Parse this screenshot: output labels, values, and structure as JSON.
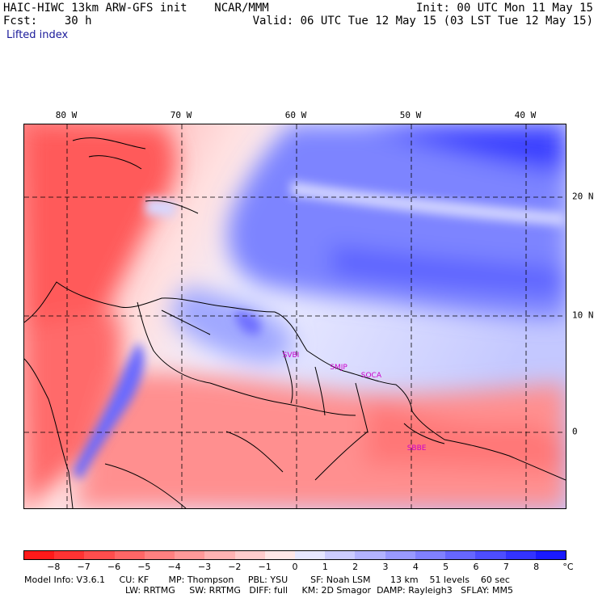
{
  "header": {
    "model_title": "HAIC-HIWC 13km ARW-GFS init    NCAR/MMM",
    "init": "Init: 00 UTC Mon 11 May 15",
    "fcst_label": "Fcst:    30 h",
    "valid": "Valid: 06 UTC Tue 12 May 15 (03 LST Tue 12 May 15)",
    "field_name": "Lifted index"
  },
  "map": {
    "lon_labels": [
      "80 W",
      "70 W",
      "60 W",
      "50 W",
      "40 W"
    ],
    "lon_values": [
      -80,
      -70,
      -60,
      -50,
      -40
    ],
    "lat_labels": [
      "20 N",
      "10 N",
      "0"
    ],
    "lat_values": [
      20,
      10,
      0
    ],
    "extent": {
      "lon_min": -82.2,
      "lon_max": -35.7,
      "lat_min": -6.5,
      "lat_max": 26.2
    },
    "stations": [
      "SVBI",
      "SMJP",
      "SOCA",
      "SBBE"
    ],
    "station_coords": [
      [
        -59.3,
        6.5
      ],
      [
        -55.2,
        5.5
      ],
      [
        -52.4,
        4.8
      ],
      [
        -48.5,
        -1.4
      ]
    ],
    "colors": {
      "land_border": "#000000",
      "grid": "#000000",
      "station_label": "#cc00cc"
    }
  },
  "colorbar": {
    "labels": [
      "−8",
      "−7",
      "−6",
      "−5",
      "−4",
      "−3",
      "−2",
      "−1",
      "0",
      "1",
      "2",
      "3",
      "4",
      "5",
      "6",
      "7",
      "8"
    ],
    "unit": "°C",
    "colors": [
      "#ff1a1a",
      "#ff3333",
      "#ff4d4d",
      "#ff6666",
      "#ff8080",
      "#ff9999",
      "#ffb3b3",
      "#ffcccc",
      "#ffe6e6",
      "#e6e6ff",
      "#ccccff",
      "#b3b3ff",
      "#9999ff",
      "#8080ff",
      "#6666ff",
      "#4d4dff",
      "#3333ff",
      "#1a1aff"
    ]
  },
  "footer": {
    "line1": "Model Info: V3.6.1     CU: KF       MP: Thompson     PBL: YSU        SF: Noah LSM       13 km    51 levels    60 sec",
    "line2": "LW: RRTMG     SW: RRTMG   DIFF: full     KM: 2D Smagor  DAMP: Rayleigh3   SFLAY: MM5"
  }
}
